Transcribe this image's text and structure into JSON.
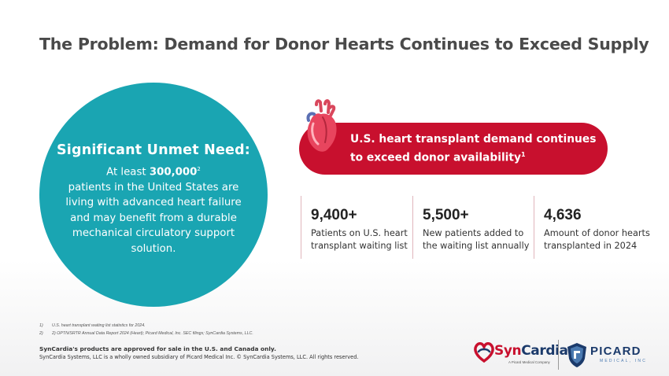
{
  "slide": {
    "title": "The Problem: Demand for Donor Hearts Continues to Exceed Supply"
  },
  "circle": {
    "heading": "Significant  Unmet  Need:",
    "intro_prefix": "At least ",
    "intro_value": "300,000",
    "intro_ref": "2",
    "body_line1": "patients in the United States are",
    "body_line2": "living with advanced heart failure",
    "body_line3": "and may benefit from a durable",
    "body_line4": "mechanical circulatory support",
    "body_line5": "solution."
  },
  "banner": {
    "line1": "U.S. heart transplant demand continues",
    "line2": "to exceed donor availability",
    "ref": "1",
    "icon": "heart-icon"
  },
  "stats": [
    {
      "value": "9,400+",
      "label_line1": "Patients on U.S. heart",
      "label_line2": "transplant waiting list"
    },
    {
      "value": "5,500+",
      "label_line1": "New patients added to",
      "label_line2": "the waiting list annually"
    },
    {
      "value": "4,636",
      "label_line1": "Amount of donor hearts",
      "label_line2": "transplanted in 2024"
    }
  ],
  "footnotes": [
    {
      "num": "1)",
      "text": "U.S. heart transplant waiting list statistics for 2024."
    },
    {
      "num": "2)",
      "text": "2) OPTN/SRTR Annual Data Report 2024 (Heart); Picard Medical, Inc. SEC filings; SynCardia Systems, LLC."
    }
  ],
  "disclaimer": {
    "line1": "SynCardia's products are approved for sale in the U.S. and Canada only.",
    "line2": "SynCardia Systems, LLC is a wholly owned subsidiary of Picard Medical Inc. © SynCardia Systems, LLC. All rights reserved."
  },
  "logos": {
    "syncardia_a": "Syn",
    "syncardia_b": "Cardia",
    "syncardia_sub": "A Picard Medical Company",
    "picard": "PICARD",
    "picard_sub": "MEDICAL, INC"
  },
  "colors": {
    "teal": "#1aa5b2",
    "red": "#c8102e",
    "navy": "#1b3a6b"
  }
}
